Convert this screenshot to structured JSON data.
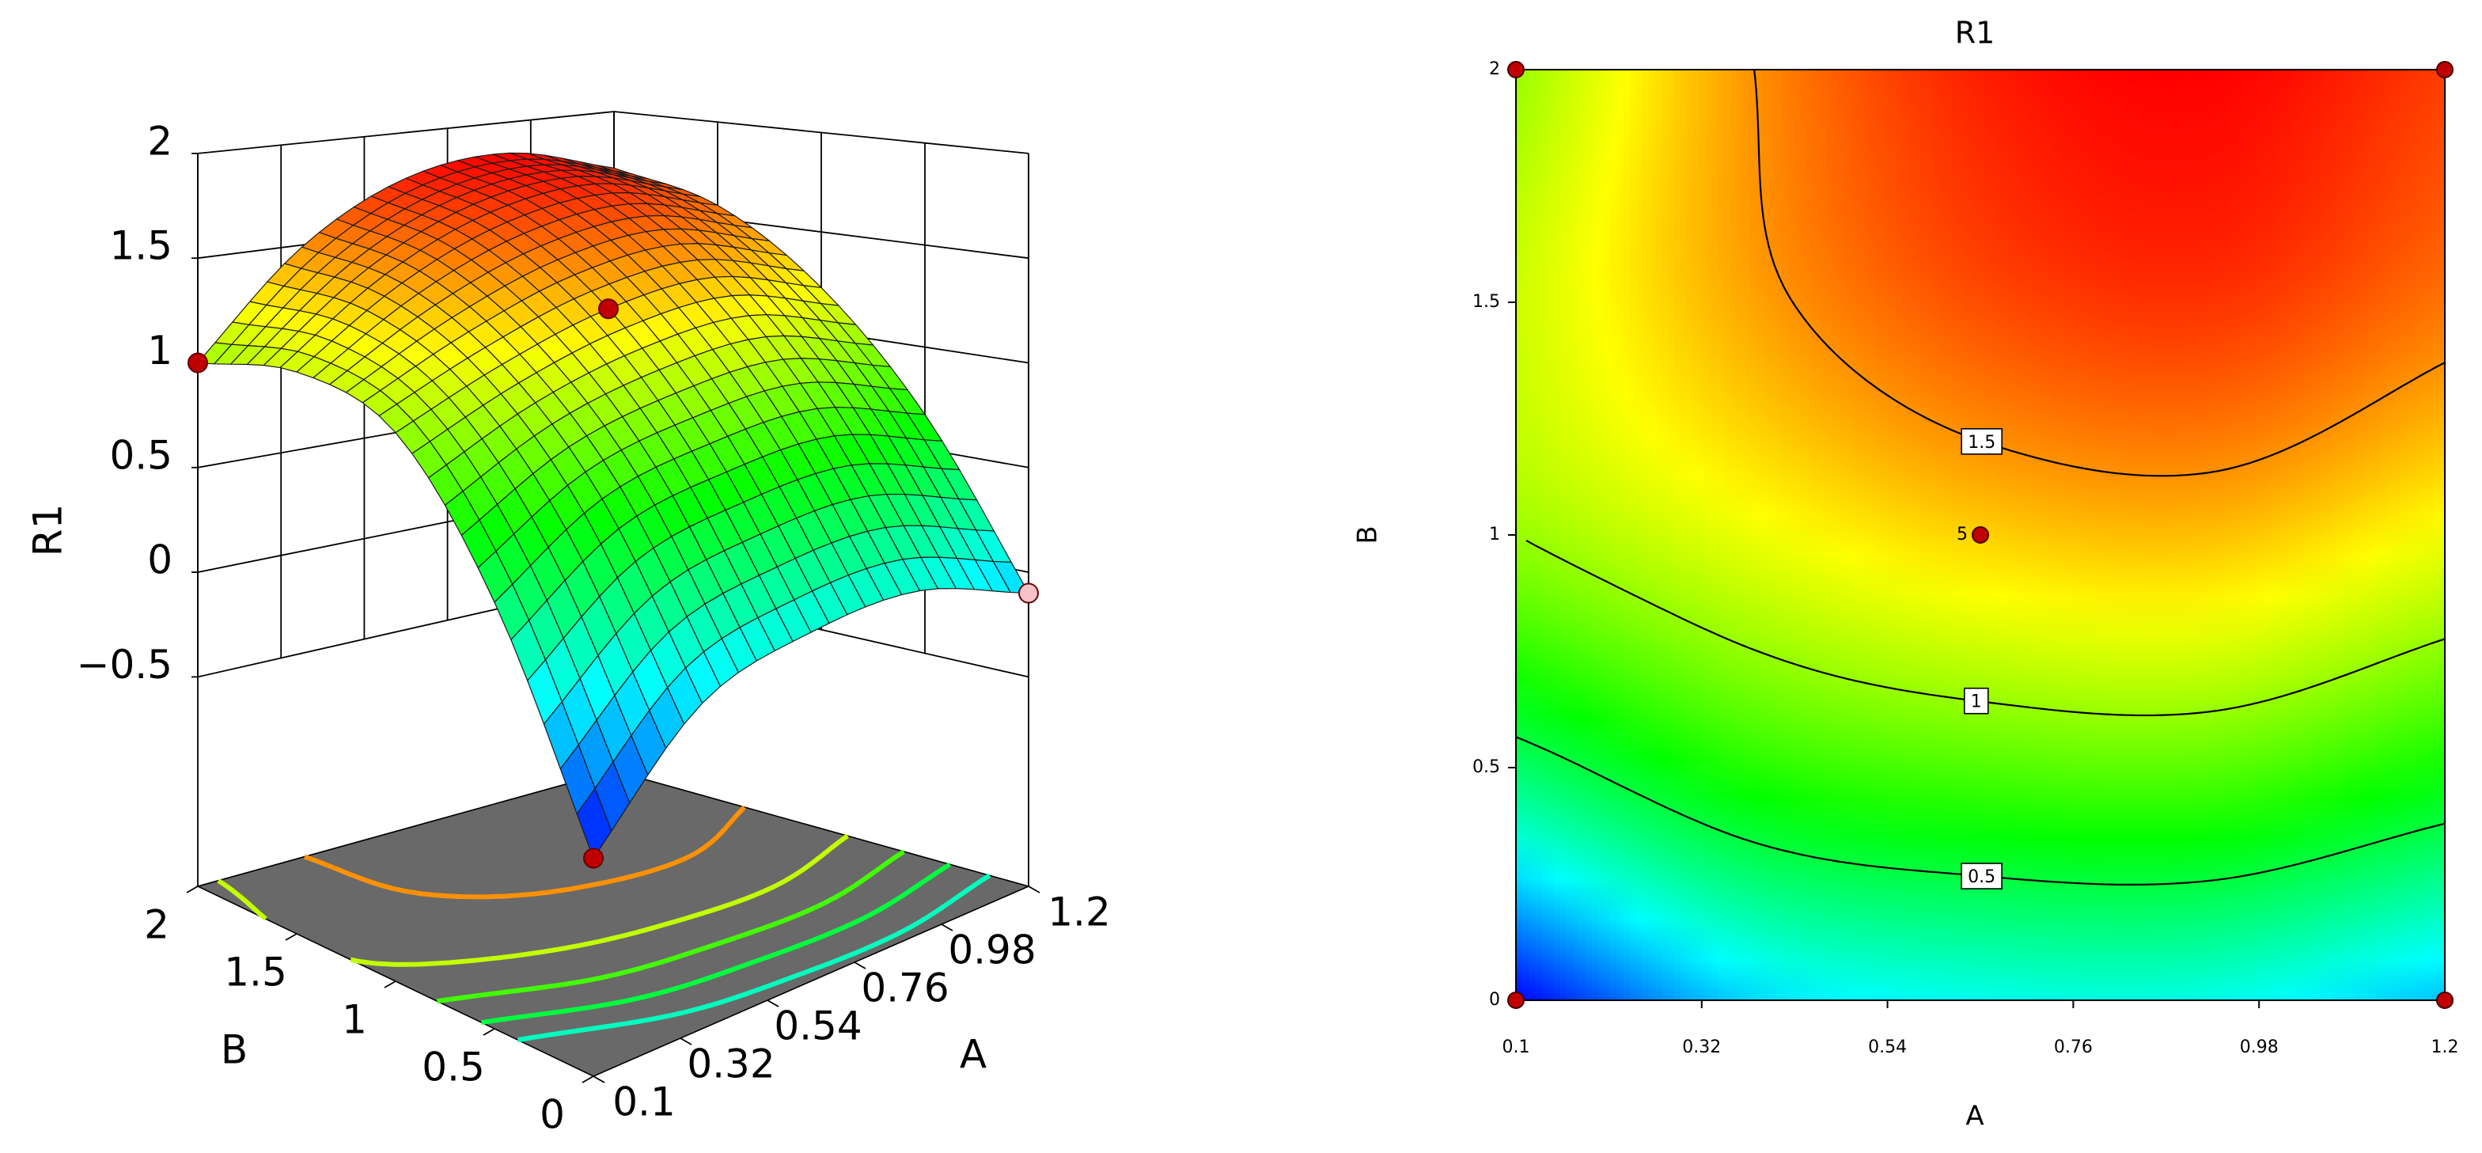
{
  "chart_data": [
    {
      "type": "surface",
      "zlabel": "R1",
      "xlabel": "A",
      "ylabel": "B",
      "xlim": [
        0.1,
        1.2
      ],
      "ylim": [
        0,
        2
      ],
      "zlim": [
        -1.5,
        2
      ],
      "xticks": [
        0.1,
        0.32,
        0.54,
        0.76,
        0.98,
        1.2
      ],
      "yticks": [
        0,
        0.5,
        1,
        1.5,
        2
      ],
      "zticks": [
        {
          "value": -0.5,
          "label": "−0.5"
        },
        0,
        0.5,
        1,
        1.5,
        2
      ],
      "grid_x": [
        0.1,
        0.375,
        0.65,
        0.925,
        1.2
      ],
      "grid_y": [
        0,
        0.5,
        1,
        1.5,
        2
      ],
      "z": [
        [
          -0.55,
          -0.05,
          0.09,
          0.1,
          -0.1
        ],
        [
          0.4,
          0.72,
          0.83,
          0.85,
          0.67
        ],
        [
          1.0,
          1.2,
          1.35,
          1.39,
          1.22
        ],
        [
          1.12,
          1.45,
          1.66,
          1.72,
          1.57
        ],
        [
          1.0,
          1.49,
          1.77,
          1.84,
          1.7
        ]
      ],
      "colormap": [
        "#0000ff",
        "#00ffff",
        "#00ff00",
        "#ffff00",
        "#ff0000"
      ],
      "floor_color": "#696969",
      "floor_levels": [
        1.5,
        1.1,
        0.8,
        0.5,
        0.2
      ],
      "points": {
        "x": [
          0.1,
          0.65,
          0.1,
          1.2
        ],
        "y": [
          2,
          1,
          0,
          0
        ],
        "z": [
          1.0,
          1.35,
          -0.55,
          -0.1
        ],
        "colors": [
          "#c00000",
          "#c00000",
          "#c00000",
          "#f4c2c8"
        ]
      }
    },
    {
      "type": "contour",
      "title": "R1",
      "xlabel": "A",
      "ylabel": "B",
      "xlim": [
        0.1,
        1.2
      ],
      "ylim": [
        0,
        2
      ],
      "xticks": [
        0.1,
        0.32,
        0.54,
        0.76,
        0.98,
        1.2
      ],
      "yticks": [
        0,
        0.5,
        1,
        1.5,
        2
      ],
      "grid_x": [
        0.1,
        0.375,
        0.65,
        0.925,
        1.2
      ],
      "grid_y": [
        0,
        0.5,
        1,
        1.5,
        2
      ],
      "z": [
        [
          -0.55,
          -0.05,
          0.09,
          0.1,
          -0.1
        ],
        [
          0.4,
          0.72,
          0.83,
          0.85,
          0.67
        ],
        [
          1.0,
          1.2,
          1.35,
          1.39,
          1.22
        ],
        [
          1.12,
          1.45,
          1.66,
          1.72,
          1.57
        ],
        [
          1.0,
          1.49,
          1.77,
          1.84,
          1.7
        ]
      ],
      "colormap": [
        "#0000ff",
        "#00ffff",
        "#00ff00",
        "#ffff00",
        "#ff0000"
      ],
      "levels": [
        0.5,
        1,
        1.5
      ],
      "points": {
        "x": [
          0.1,
          1.2,
          0.1,
          1.2,
          0.65
        ],
        "y": [
          0,
          0,
          2,
          2,
          1
        ],
        "labels": [
          null,
          null,
          null,
          null,
          "5"
        ]
      },
      "point_color": "#c00000"
    }
  ]
}
